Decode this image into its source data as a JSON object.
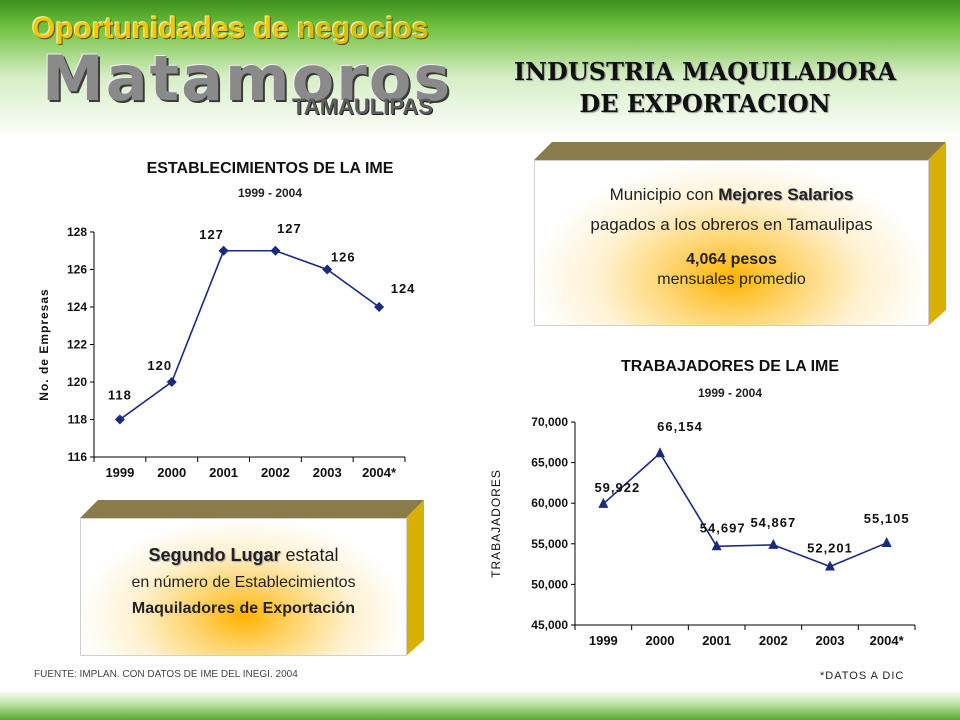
{
  "brand": {
    "line1a": "Oportunidades de",
    "line1b": "negocios",
    "city": "Matamoros",
    "state": "TAMAULIPAS"
  },
  "title": {
    "line1": "INDUSTRIA MAQUILADORA",
    "line2": "DE EXPORTACION"
  },
  "chart_data": [
    {
      "type": "line",
      "title": "ESTABLECIMIENTOS DE LA IME",
      "subtitle": "1999 - 2004",
      "ylabel": "No. de Empresas",
      "xlabel": "",
      "categories": [
        "1999",
        "2000",
        "2001",
        "2002",
        "2003",
        "2004*"
      ],
      "values": [
        118,
        120,
        127,
        127,
        126,
        124
      ],
      "data_labels": [
        "118",
        "120",
        "127",
        "127",
        "126",
        "124"
      ],
      "yticks": [
        "116",
        "118",
        "120",
        "122",
        "124",
        "126",
        "128"
      ],
      "ylim": [
        116,
        128
      ],
      "marker": "diamond",
      "color": "#1a2a80"
    },
    {
      "type": "line",
      "title": "TRABAJADORES  DE LA IME",
      "subtitle": "1999 - 2004",
      "ylabel": "TRABAJADORES",
      "xlabel": "",
      "categories": [
        "1999",
        "2000",
        "2001",
        "2002",
        "2003",
        "2004*"
      ],
      "values": [
        59922,
        66154,
        54697,
        54867,
        52201,
        55105
      ],
      "data_labels": [
        "59,922",
        "66,154",
        "54,697",
        "54,867",
        "52,201",
        "55,105"
      ],
      "yticks": [
        "45,000",
        "50,000",
        "55,000",
        "60,000",
        "65,000",
        "70,000"
      ],
      "ylim": [
        45000,
        70000
      ],
      "marker": "triangle",
      "color": "#1a2a80"
    }
  ],
  "salary_box": {
    "line1_pre": "Municipio con ",
    "line1_bold": "Mejores Salarios",
    "line2": "pagados a los obreros en Tamaulipas",
    "amount": "4,064 pesos",
    "line4": "mensuales promedio"
  },
  "rank_box": {
    "bold": "Segundo Lugar",
    "rest": " estatal",
    "line2": "en número de Establecimientos",
    "line3": "Maquiladores de Exportación"
  },
  "footer": {
    "source": "FUENTE: IMPLAN. CON DATOS DE IME DEL INEGI. 2004",
    "note": "*DATOS A DIC"
  },
  "colors": {
    "brand_yellow": "#f0c800",
    "box_side": "#d9b000",
    "box_glow": "#ffb300",
    "series": "#1a2a80"
  }
}
